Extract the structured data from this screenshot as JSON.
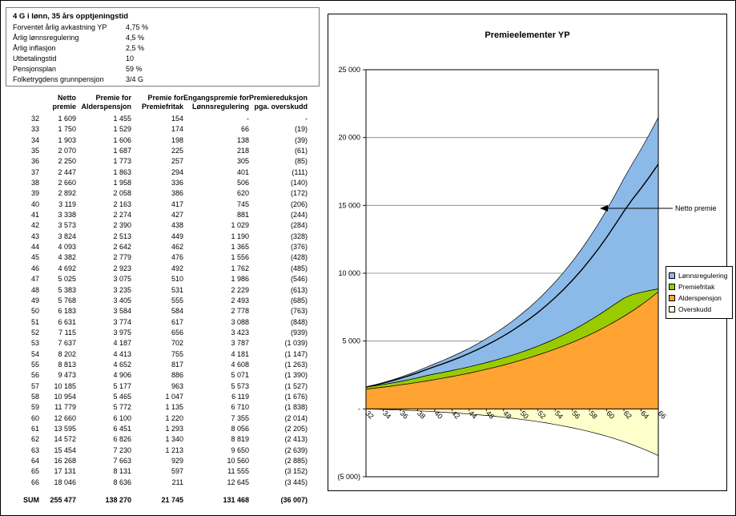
{
  "params": {
    "title": "4 G i lønn, 35 års opptjeningstid",
    "rows": [
      {
        "label": "Forventet årlig avkastning YP",
        "value": "4,75 %"
      },
      {
        "label": "Årlig lønnsregulering",
        "value": "4,5 %"
      },
      {
        "label": "Årlig inflasjon",
        "value": "2,5 %"
      },
      {
        "label": "Utbetalingstid",
        "value": "10"
      },
      {
        "label": "Pensjonsplan",
        "value": "59 %"
      },
      {
        "label": "Folketrygdens grunnpensjon",
        "value": "3/4 G"
      }
    ]
  },
  "table": {
    "headers": [
      {
        "line1": "",
        "line2": ""
      },
      {
        "line1": "Netto",
        "line2": "premie"
      },
      {
        "line1": "Premie for",
        "line2": "Alderspensjon"
      },
      {
        "line1": "Premie for",
        "line2": "Premiefritak"
      },
      {
        "line1": "Engangspremie for",
        "line2": "Lønnsregulering"
      },
      {
        "line1": "Premiereduksjon",
        "line2": "pga. overskudd"
      }
    ],
    "rows": [
      [
        "32",
        "1 609",
        "1 455",
        "154",
        "-",
        "-"
      ],
      [
        "33",
        "1 750",
        "1 529",
        "174",
        "66",
        "(19)"
      ],
      [
        "34",
        "1 903",
        "1 606",
        "198",
        "138",
        "(39)"
      ],
      [
        "35",
        "2 070",
        "1 687",
        "225",
        "218",
        "(61)"
      ],
      [
        "36",
        "2 250",
        "1 773",
        "257",
        "305",
        "(85)"
      ],
      [
        "37",
        "2 447",
        "1 863",
        "294",
        "401",
        "(111)"
      ],
      [
        "38",
        "2 660",
        "1 958",
        "336",
        "506",
        "(140)"
      ],
      [
        "39",
        "2 892",
        "2 058",
        "386",
        "620",
        "(172)"
      ],
      [
        "40",
        "3 119",
        "2 163",
        "417",
        "745",
        "(206)"
      ],
      [
        "41",
        "3 338",
        "2 274",
        "427",
        "881",
        "(244)"
      ],
      [
        "42",
        "3 573",
        "2 390",
        "438",
        "1 029",
        "(284)"
      ],
      [
        "43",
        "3 824",
        "2 513",
        "449",
        "1 190",
        "(328)"
      ],
      [
        "44",
        "4 093",
        "2 642",
        "462",
        "1 365",
        "(376)"
      ],
      [
        "45",
        "4 382",
        "2 779",
        "476",
        "1 556",
        "(428)"
      ],
      [
        "46",
        "4 692",
        "2 923",
        "492",
        "1 762",
        "(485)"
      ],
      [
        "47",
        "5 025",
        "3 075",
        "510",
        "1 986",
        "(546)"
      ],
      [
        "48",
        "5 383",
        "3 235",
        "531",
        "2 229",
        "(613)"
      ],
      [
        "49",
        "5 768",
        "3 405",
        "555",
        "2 493",
        "(685)"
      ],
      [
        "50",
        "6 183",
        "3 584",
        "584",
        "2 778",
        "(763)"
      ],
      [
        "51",
        "6 631",
        "3 774",
        "617",
        "3 088",
        "(848)"
      ],
      [
        "52",
        "7 115",
        "3 975",
        "656",
        "3 423",
        "(939)"
      ],
      [
        "53",
        "7 637",
        "4 187",
        "702",
        "3 787",
        "(1 039)"
      ],
      [
        "54",
        "8 202",
        "4 413",
        "755",
        "4 181",
        "(1 147)"
      ],
      [
        "55",
        "8 813",
        "4 652",
        "817",
        "4 608",
        "(1 263)"
      ],
      [
        "56",
        "9 473",
        "4 906",
        "886",
        "5 071",
        "(1 390)"
      ],
      [
        "57",
        "10 185",
        "5 177",
        "963",
        "5 573",
        "(1 527)"
      ],
      [
        "58",
        "10 954",
        "5 465",
        "1 047",
        "6 119",
        "(1 676)"
      ],
      [
        "59",
        "11 779",
        "5 772",
        "1 135",
        "6 710",
        "(1 838)"
      ],
      [
        "60",
        "12 660",
        "6 100",
        "1 220",
        "7 355",
        "(2 014)"
      ],
      [
        "61",
        "13 595",
        "6 451",
        "1 293",
        "8 056",
        "(2 205)"
      ],
      [
        "62",
        "14 572",
        "6 826",
        "1 340",
        "8 819",
        "(2 413)"
      ],
      [
        "63",
        "15 454",
        "7 230",
        "1 213",
        "9 650",
        "(2 639)"
      ],
      [
        "64",
        "16 268",
        "7 663",
        "929",
        "10 560",
        "(2 885)"
      ],
      [
        "65",
        "17 131",
        "8 131",
        "597",
        "11 555",
        "(3 152)"
      ],
      [
        "66",
        "18 046",
        "8 636",
        "211",
        "12 645",
        "(3 445)"
      ]
    ],
    "sum_label": "SUM",
    "sum_row": [
      "255 477",
      "138 270",
      "21 745",
      "131 468",
      "(36 007)"
    ]
  },
  "chart_data": {
    "type": "area",
    "title": "Premieelementer YP",
    "x": [
      32,
      33,
      34,
      35,
      36,
      37,
      38,
      39,
      40,
      41,
      42,
      43,
      44,
      45,
      46,
      47,
      48,
      49,
      50,
      51,
      52,
      53,
      54,
      55,
      56,
      57,
      58,
      59,
      60,
      61,
      62,
      63,
      64,
      65,
      66
    ],
    "stack_order": [
      "Alderspensjon",
      "Premiefritak",
      "Lønnsregulering"
    ],
    "negative_series": "Overskudd",
    "series": [
      {
        "name": "Alderspensjon",
        "color": "#FFA333",
        "values": [
          1455,
          1529,
          1606,
          1687,
          1773,
          1863,
          1958,
          2058,
          2163,
          2274,
          2390,
          2513,
          2642,
          2779,
          2923,
          3075,
          3235,
          3405,
          3584,
          3774,
          3975,
          4187,
          4413,
          4652,
          4906,
          5177,
          5465,
          5772,
          6100,
          6451,
          6826,
          7230,
          7663,
          8131,
          8636
        ]
      },
      {
        "name": "Premiefritak",
        "color": "#99CC00",
        "values": [
          154,
          174,
          198,
          225,
          257,
          294,
          336,
          386,
          417,
          427,
          438,
          449,
          462,
          476,
          492,
          510,
          531,
          555,
          584,
          617,
          656,
          702,
          755,
          817,
          886,
          963,
          1047,
          1135,
          1220,
          1293,
          1340,
          1213,
          929,
          597,
          211
        ]
      },
      {
        "name": "Lønnsregulering",
        "color": "#8CBAE8",
        "values": [
          0,
          66,
          138,
          218,
          305,
          401,
          506,
          620,
          745,
          881,
          1029,
          1190,
          1365,
          1556,
          1762,
          1986,
          2229,
          2493,
          2778,
          3088,
          3423,
          3787,
          4181,
          4608,
          5071,
          5573,
          6119,
          6710,
          7355,
          8056,
          8819,
          9650,
          10560,
          11555,
          12645
        ]
      },
      {
        "name": "Overskudd",
        "color": "#FFFFCC",
        "values": [
          0,
          -19,
          -39,
          -61,
          -85,
          -111,
          -140,
          -172,
          -206,
          -244,
          -284,
          -328,
          -376,
          -428,
          -485,
          -546,
          -613,
          -685,
          -763,
          -848,
          -939,
          -1039,
          -1147,
          -1263,
          -1390,
          -1527,
          -1676,
          -1838,
          -2014,
          -2205,
          -2413,
          -2639,
          -2885,
          -3152,
          -3445
        ]
      }
    ],
    "line_series": {
      "name": "Netto premie",
      "color": "#000000",
      "values": [
        1609,
        1750,
        1903,
        2070,
        2250,
        2447,
        2660,
        2892,
        3119,
        3338,
        3573,
        3824,
        4093,
        4382,
        4692,
        5025,
        5383,
        5768,
        6183,
        6631,
        7115,
        7637,
        8202,
        8813,
        9473,
        10185,
        10954,
        11779,
        12660,
        13595,
        14572,
        15454,
        16268,
        17131,
        18046
      ]
    },
    "legend": [
      "Lønnsregulering",
      "Premiefritak",
      "Alderspensjon",
      "Overskudd"
    ],
    "legend_position": "right",
    "annotation": "Netto premie",
    "ylim": [
      -5000,
      25000
    ],
    "grid": true,
    "yticks": [
      {
        "v": 25000,
        "label": "25 000"
      },
      {
        "v": 20000,
        "label": "20 000"
      },
      {
        "v": 15000,
        "label": "15 000"
      },
      {
        "v": 10000,
        "label": "10 000"
      },
      {
        "v": 5000,
        "label": "5 000"
      },
      {
        "v": 0,
        "label": "-"
      },
      {
        "v": -5000,
        "label": "(5 000)"
      }
    ],
    "xtick_step": 2
  }
}
